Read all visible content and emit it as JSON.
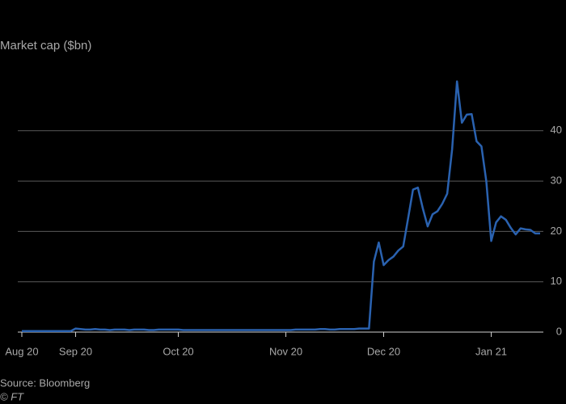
{
  "chart_data": {
    "type": "line",
    "title": "Market cap ($bn)",
    "source": "Source: Bloomberg",
    "credit": "© FT",
    "categories": [
      "Aug 20",
      null,
      null,
      null,
      null,
      null,
      null,
      null,
      null,
      null,
      null,
      "Sep 20",
      null,
      null,
      null,
      null,
      null,
      null,
      null,
      null,
      null,
      null,
      null,
      null,
      null,
      null,
      null,
      null,
      null,
      null,
      null,
      null,
      "Oct 20",
      null,
      null,
      null,
      null,
      null,
      null,
      null,
      null,
      null,
      null,
      null,
      null,
      null,
      null,
      null,
      null,
      null,
      null,
      null,
      null,
      null,
      "Nov 20",
      null,
      null,
      null,
      null,
      null,
      null,
      null,
      null,
      null,
      null,
      null,
      null,
      null,
      null,
      null,
      null,
      null,
      null,
      null,
      "Dec 20",
      null,
      null,
      null,
      null,
      null,
      null,
      null,
      null,
      null,
      null,
      null,
      null,
      null,
      null,
      null,
      null,
      null,
      null,
      null,
      null,
      null,
      "Jan 21",
      null,
      null,
      null,
      null,
      null,
      null,
      null,
      null,
      null,
      null
    ],
    "values": [
      0.2,
      0.2,
      0.2,
      0.2,
      0.2,
      0.2,
      0.2,
      0.2,
      0.2,
      0.2,
      0.2,
      0.7,
      0.6,
      0.5,
      0.5,
      0.6,
      0.5,
      0.5,
      0.4,
      0.5,
      0.5,
      0.5,
      0.4,
      0.5,
      0.5,
      0.5,
      0.4,
      0.4,
      0.5,
      0.5,
      0.5,
      0.5,
      0.5,
      0.4,
      0.4,
      0.4,
      0.4,
      0.4,
      0.4,
      0.4,
      0.4,
      0.4,
      0.4,
      0.4,
      0.4,
      0.4,
      0.4,
      0.4,
      0.4,
      0.4,
      0.4,
      0.4,
      0.4,
      0.4,
      0.4,
      0.4,
      0.5,
      0.5,
      0.5,
      0.5,
      0.5,
      0.6,
      0.6,
      0.5,
      0.5,
      0.6,
      0.6,
      0.6,
      0.6,
      0.7,
      0.7,
      0.7,
      14,
      17.8,
      13.3,
      14.3,
      15,
      16.2,
      17,
      22.6,
      28.3,
      28.7,
      24.6,
      21,
      23.4,
      24,
      25.5,
      27.5,
      36.3,
      49.8,
      41.6,
      43.2,
      43.3,
      37.9,
      36.9,
      29.9,
      18.1,
      21.8,
      23,
      22.3,
      20.7,
      19.4,
      20.6,
      20.4,
      20.3,
      19.6,
      19.6
    ],
    "color": "#2a62b0",
    "ylim": [
      0,
      50
    ],
    "yticks": [
      0,
      10,
      20,
      30,
      40
    ],
    "grid": true
  }
}
